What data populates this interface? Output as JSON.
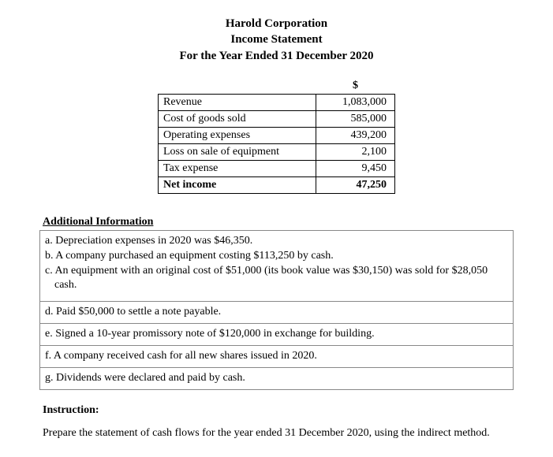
{
  "header": {
    "company": "Harold Corporation",
    "statement": "Income Statement",
    "period": "For the Year Ended 31 December 2020"
  },
  "income_statement": {
    "currency_header": "$",
    "rows": [
      {
        "label": "Revenue",
        "value": "1,083,000"
      },
      {
        "label": "Cost of goods sold",
        "value": "585,000"
      },
      {
        "label": "Operating expenses",
        "value": "439,200"
      },
      {
        "label": "Loss on sale of equipment",
        "value": "2,100"
      },
      {
        "label": "Tax expense",
        "value": "9,450"
      }
    ],
    "net_row": {
      "label": "Net income",
      "value": "47,250"
    }
  },
  "additional_info": {
    "title": "Additional Information",
    "grouped_items": [
      "a. Depreciation expenses in 2020 was $46,350.",
      "b. A company purchased an equipment costing $113,250 by cash.",
      "c. An equipment with an original cost of $51,000 (its book value was $30,150) was sold for $28,050 cash."
    ],
    "single_items": [
      "d. Paid $50,000 to settle a note payable.",
      "e. Signed a 10-year promissory note of $120,000 in exchange for building.",
      "f. A company received cash for all new shares issued in 2020.",
      "g. Dividends were declared and paid by cash."
    ]
  },
  "instruction": {
    "label": "Instruction:",
    "text": "Prepare the statement of cash flows for the year ended 31 December 2020, using the indirect method."
  }
}
